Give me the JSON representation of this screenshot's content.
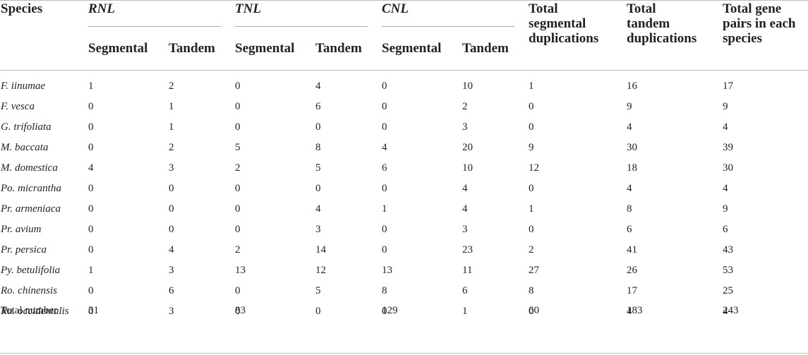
{
  "header": {
    "species": "Species",
    "rnl": "RNL",
    "tnl": "TNL",
    "cnl": "CNL",
    "segmental": "Segmental",
    "tandem": "Tandem",
    "total_seg": [
      "Total",
      "segmental",
      "duplications"
    ],
    "total_tan": [
      "Total",
      "tandem",
      "duplications"
    ],
    "total_pairs": [
      "Total gene",
      "pairs in each",
      "species"
    ]
  },
  "rows": [
    {
      "species": "F. iinumae",
      "c": [
        "1",
        "2",
        "0",
        "4",
        "0",
        "10",
        "1",
        "16",
        "17"
      ]
    },
    {
      "species": "F. vesca",
      "c": [
        "0",
        "1",
        "0",
        "6",
        "0",
        "2",
        "0",
        "9",
        "9"
      ]
    },
    {
      "species": "G. trifoliata",
      "c": [
        "0",
        "1",
        "0",
        "0",
        "0",
        "3",
        "0",
        "4",
        "4"
      ]
    },
    {
      "species": "M. baccata",
      "c": [
        "0",
        "2",
        "5",
        "8",
        "4",
        "20",
        "9",
        "30",
        "39"
      ]
    },
    {
      "species": "M. domestica",
      "c": [
        "4",
        "3",
        "2",
        "5",
        "6",
        "10",
        "12",
        "18",
        "30"
      ]
    },
    {
      "species": "Po. micrantha",
      "c": [
        "0",
        "0",
        "0",
        "0",
        "0",
        "4",
        "0",
        "4",
        "4"
      ]
    },
    {
      "species": "Pr. armeniaca",
      "c": [
        "0",
        "0",
        "0",
        "4",
        "1",
        "4",
        "1",
        "8",
        "9"
      ]
    },
    {
      "species": "Pr. avium",
      "c": [
        "0",
        "0",
        "0",
        "3",
        "0",
        "3",
        "0",
        "6",
        "6"
      ]
    },
    {
      "species": "Pr. persica",
      "c": [
        "0",
        "4",
        "2",
        "14",
        "0",
        "23",
        "2",
        "41",
        "43"
      ]
    },
    {
      "species": "Py. betulifolia",
      "c": [
        "1",
        "3",
        "13",
        "12",
        "13",
        "11",
        "27",
        "26",
        "53"
      ]
    },
    {
      "species": "Ro. chinensis",
      "c": [
        "0",
        "6",
        "0",
        "5",
        "8",
        "6",
        "8",
        "17",
        "25"
      ]
    },
    {
      "species": "Ru. occidentalis",
      "c": [
        "0",
        "3",
        "0",
        "0",
        "0",
        "1",
        "0",
        "4",
        "4"
      ]
    }
  ],
  "total_row": {
    "label": "Total number",
    "rnl": "31",
    "tnl": "83",
    "cnl": "129",
    "total_seg": "60",
    "total_tan": "183",
    "total_pairs": "243"
  }
}
